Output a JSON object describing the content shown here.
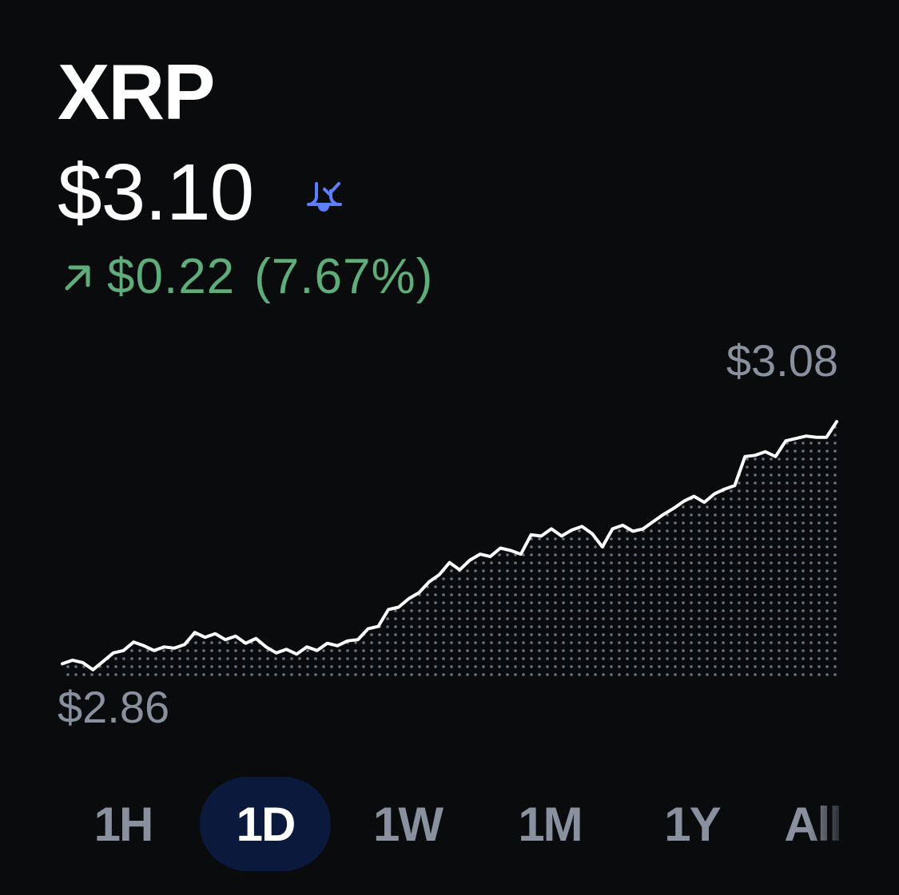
{
  "asset": {
    "name": "XRP",
    "price": "$3.10",
    "alert_icon": "bell-check-icon",
    "change": {
      "direction_icon": "arrow-up-right-icon",
      "amount": "$0.22",
      "percent": "(7.67%)"
    }
  },
  "colors": {
    "background": "#0a0b0d",
    "positive": "#5fad7b",
    "accent": "#5b7fff",
    "muted": "#8a919e",
    "active_tab": "#0b1a3c",
    "line": "#ffffff"
  },
  "chart_data": {
    "type": "area",
    "high_label": "$3.08",
    "low_label": "$2.86",
    "ylim": [
      2.86,
      3.08
    ],
    "grid": false,
    "values": [
      2.871,
      2.874,
      2.872,
      2.866,
      2.873,
      2.88,
      2.882,
      2.889,
      2.886,
      2.882,
      2.885,
      2.884,
      2.887,
      2.897,
      2.893,
      2.896,
      2.891,
      2.894,
      2.888,
      2.892,
      2.885,
      2.88,
      2.883,
      2.879,
      2.885,
      2.882,
      2.888,
      2.886,
      2.89,
      2.891,
      2.9,
      2.902,
      2.916,
      2.918,
      2.925,
      2.93,
      2.939,
      2.945,
      2.955,
      2.949,
      2.957,
      2.962,
      2.96,
      2.967,
      2.965,
      2.962,
      2.978,
      2.977,
      2.983,
      2.977,
      2.982,
      2.985,
      2.979,
      2.968,
      2.983,
      2.986,
      2.981,
      2.983,
      2.989,
      2.995,
      3.0,
      3.006,
      3.01,
      3.005,
      3.012,
      3.016,
      3.019,
      3.043,
      3.044,
      3.047,
      3.043,
      3.056,
      3.058,
      3.06,
      3.059,
      3.059,
      3.072
    ]
  },
  "range_tabs": {
    "selected": "1D",
    "items": [
      {
        "label": "1H"
      },
      {
        "label": "1D"
      },
      {
        "label": "1W"
      },
      {
        "label": "1M"
      },
      {
        "label": "1Y"
      },
      {
        "label": "All"
      }
    ]
  }
}
